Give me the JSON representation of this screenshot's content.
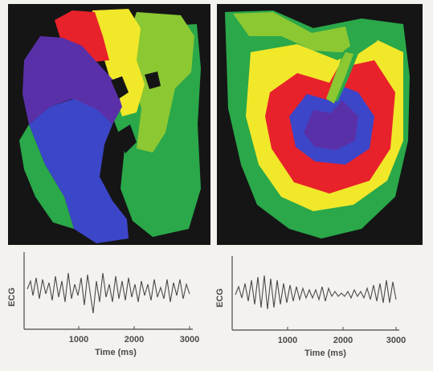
{
  "panels": [
    {
      "id": "left",
      "description_colors": [
        "#5a2ea8",
        "#3a48c8",
        "#2aa84a",
        "#8ac82a",
        "#f0e82a",
        "#e8222a"
      ],
      "ecg": {
        "ylabel": "ECG",
        "xlabel": "Time (ms)",
        "ticks": [
          "1000",
          "2000",
          "3000"
        ]
      }
    },
    {
      "id": "right",
      "description_colors": [
        "#2aa84a",
        "#f0e82a",
        "#e8222a",
        "#3a48c8",
        "#8ac82a"
      ],
      "ecg": {
        "ylabel": "ECG",
        "xlabel": "Time (ms)",
        "ticks": [
          "1000",
          "2000",
          "3000"
        ]
      }
    }
  ],
  "colors": {
    "background": "#f4f2ee",
    "panel": "#151515",
    "purple": "#5a30a8",
    "blue": "#3c46c8",
    "green": "#2aa84a",
    "yellowgreen": "#8cc832",
    "yellow": "#f2e82a",
    "red": "#e8222a",
    "trace": "#4a4a4a"
  }
}
